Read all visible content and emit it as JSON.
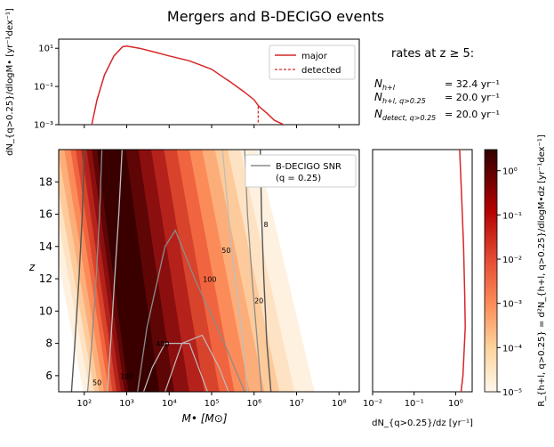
{
  "page": {
    "title": "Mergers and B-DECIGO events"
  },
  "rates": {
    "header": "rates at z ≥ 5:",
    "rows": [
      {
        "sym": "N",
        "sub": "h+l",
        "value": "= 32.4 yr⁻¹"
      },
      {
        "sym": "N",
        "sub": "h+l, q>0.25",
        "value": "= 20.0 yr⁻¹"
      },
      {
        "sym": "N",
        "sub": "detect, q>0.25",
        "value": "= 20.0 yr⁻¹"
      }
    ]
  },
  "colors": {
    "major": "#d62728",
    "contour_dark": "#555555",
    "contour_mid": "#8c8c8c",
    "contour_light": "#bdbdbd"
  },
  "chart_data": [
    {
      "id": "top",
      "type": "line",
      "xlabel": "",
      "ylabel": "dN_{q>0.25}/dlogM• [yr⁻¹dex⁻¹]",
      "xscale": "log",
      "yscale": "log",
      "xlim": [
        25,
        300000000
      ],
      "ylim": [
        0.001,
        30
      ],
      "ytick_labels": [
        "10¹",
        "10⁻¹",
        "10⁻³"
      ],
      "ytick_values": [
        10,
        0.1,
        0.001
      ],
      "legend": {
        "placement": "top-right",
        "entries": [
          "major",
          "detected"
        ]
      },
      "series": [
        {
          "name": "major",
          "style": "solid",
          "x": [
            150,
            200,
            300,
            500,
            800,
            1000,
            2000,
            5000,
            10000,
            30000,
            100000,
            300000,
            600000,
            1000000,
            1300000,
            2000000,
            3000000,
            5000000
          ],
          "y": [
            0.001,
            0.02,
            0.4,
            4.0,
            12,
            13,
            10,
            6,
            4,
            2.2,
            0.8,
            0.15,
            0.05,
            0.02,
            0.009,
            0.004,
            0.0017,
            0.001
          ]
        },
        {
          "name": "detected",
          "style": "dashed",
          "x": [
            1250000,
            1250000
          ],
          "y": [
            0.009,
            0.001
          ]
        }
      ]
    },
    {
      "id": "main",
      "type": "heatmap",
      "xlabel": "M•  [M⊙]",
      "ylabel": "z",
      "xscale": "log",
      "xlim": [
        25,
        300000000
      ],
      "ylim": [
        5,
        20
      ],
      "xtick_labels": [
        "10²",
        "10³",
        "10⁴",
        "10⁵",
        "10⁶",
        "10⁷",
        "10⁸"
      ],
      "xtick_values": [
        100,
        1000,
        10000,
        100000,
        1000000,
        10000000,
        100000000
      ],
      "ytick_values": [
        6,
        8,
        10,
        12,
        14,
        16,
        18
      ],
      "ytick_labels": [
        "6",
        "8",
        "10",
        "12",
        "14",
        "16",
        "18"
      ],
      "legend": {
        "placement": "top-right",
        "entries": [
          "B-DECIGO SNR",
          "(q = 0.25)"
        ]
      },
      "contour_labels": [
        {
          "text": "8",
          "x": 1900000,
          "z": 15.2
        },
        {
          "text": "50",
          "x": 220000,
          "z": 13.6
        },
        {
          "text": "100",
          "x": 90000,
          "z": 11.8
        },
        {
          "text": "400",
          "x": 7000,
          "z": 7.8
        },
        {
          "text": "100",
          "x": 1000,
          "z": 5.8
        },
        {
          "text": "50",
          "x": 200,
          "z": 5.4
        },
        {
          "text": "20",
          "x": 1300000,
          "z": 10.5
        }
      ],
      "ridge": {
        "x_at_z5": 1500,
        "x_at_z20": 300,
        "note_color": "#3a0000"
      }
    },
    {
      "id": "colorbar",
      "type": "heatmap",
      "ylabel": "R_{h+l, q>0.25} = d²N_{h+l, q>0.25}/dlogM•dz [yr⁻¹dex⁻¹]",
      "scale": "log",
      "range": [
        1e-05,
        3
      ],
      "tick_labels": [
        "10⁰",
        "10⁻¹",
        "10⁻²",
        "10⁻³",
        "10⁻⁴",
        "10⁻⁵"
      ],
      "tick_values": [
        1,
        0.1,
        0.01,
        0.001,
        0.0001,
        1e-05
      ]
    },
    {
      "id": "side",
      "type": "line",
      "xlabel": "dN_{q>0.25}/dz [yr⁻¹]",
      "xscale": "log",
      "xlim": [
        0.01,
        2.5
      ],
      "ylim": [
        5,
        20
      ],
      "xtick_labels": [
        "10⁻²",
        "10⁻¹",
        "10⁰"
      ],
      "xtick_values": [
        0.01,
        0.1,
        1
      ],
      "series": [
        {
          "name": "",
          "x": [
            1.35,
            1.5,
            1.6,
            1.7,
            1.65,
            1.55,
            1.4,
            1.25
          ],
          "z": [
            5,
            6,
            7.5,
            9,
            11,
            14,
            17,
            20
          ]
        }
      ]
    }
  ]
}
